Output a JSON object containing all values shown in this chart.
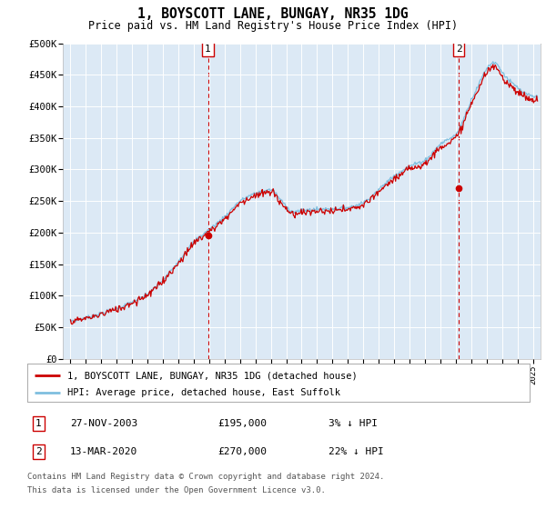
{
  "title": "1, BOYSCOTT LANE, BUNGAY, NR35 1DG",
  "subtitle": "Price paid vs. HM Land Registry's House Price Index (HPI)",
  "ylabel_ticks": [
    "£0",
    "£50K",
    "£100K",
    "£150K",
    "£200K",
    "£250K",
    "£300K",
    "£350K",
    "£400K",
    "£450K",
    "£500K"
  ],
  "ylim": [
    0,
    500000
  ],
  "xlim_start": 1994.5,
  "xlim_end": 2025.5,
  "plot_bg_color": "#dce9f5",
  "hpi_color": "#7fbfdf",
  "price_color": "#cc0000",
  "vline_color": "#cc0000",
  "transaction_1": {
    "date_x": 2003.92,
    "price": 195000,
    "label": "1",
    "date_str": "27-NOV-2003",
    "amount": "£195,000",
    "pct": "3% ↓ HPI"
  },
  "transaction_2": {
    "date_x": 2020.2,
    "price": 270000,
    "label": "2",
    "date_str": "13-MAR-2020",
    "amount": "£270,000",
    "pct": "22% ↓ HPI"
  },
  "legend_line1": "1, BOYSCOTT LANE, BUNGAY, NR35 1DG (detached house)",
  "legend_line2": "HPI: Average price, detached house, East Suffolk",
  "footer_line1": "Contains HM Land Registry data © Crown copyright and database right 2024.",
  "footer_line2": "This data is licensed under the Open Government Licence v3.0.",
  "xtick_years": [
    1995,
    1996,
    1997,
    1998,
    1999,
    2000,
    2001,
    2002,
    2003,
    2004,
    2005,
    2006,
    2007,
    2008,
    2009,
    2010,
    2011,
    2012,
    2013,
    2014,
    2015,
    2016,
    2017,
    2018,
    2019,
    2020,
    2021,
    2022,
    2023,
    2024,
    2025
  ]
}
